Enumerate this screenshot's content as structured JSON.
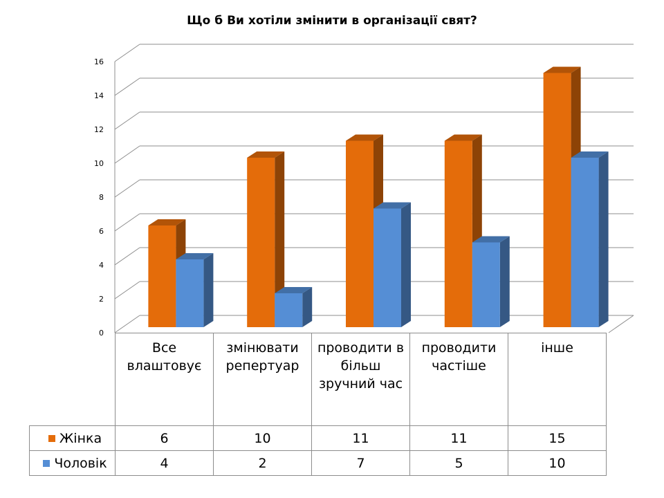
{
  "chart_data": {
    "type": "bar",
    "title": "Що б Ви хотіли змінити в організації свят?",
    "categories": [
      "Все влаштовує",
      "змінювати репертуар",
      "проводити в більш зручний час",
      "проводити частіше",
      "інше"
    ],
    "series": [
      {
        "name": "Жінка",
        "values": [
          6,
          10,
          11,
          11,
          15
        ],
        "color": "#e46c0a"
      },
      {
        "name": "Чоловік",
        "values": [
          4,
          2,
          7,
          5,
          10
        ],
        "color": "#558ed5"
      }
    ],
    "ylim": [
      0,
      16
    ],
    "yticks": [
      "0",
      "2",
      "4",
      "6",
      "8",
      "10",
      "12",
      "14",
      "16"
    ],
    "grid": true,
    "legend": "data-table",
    "style": "3d-column"
  }
}
